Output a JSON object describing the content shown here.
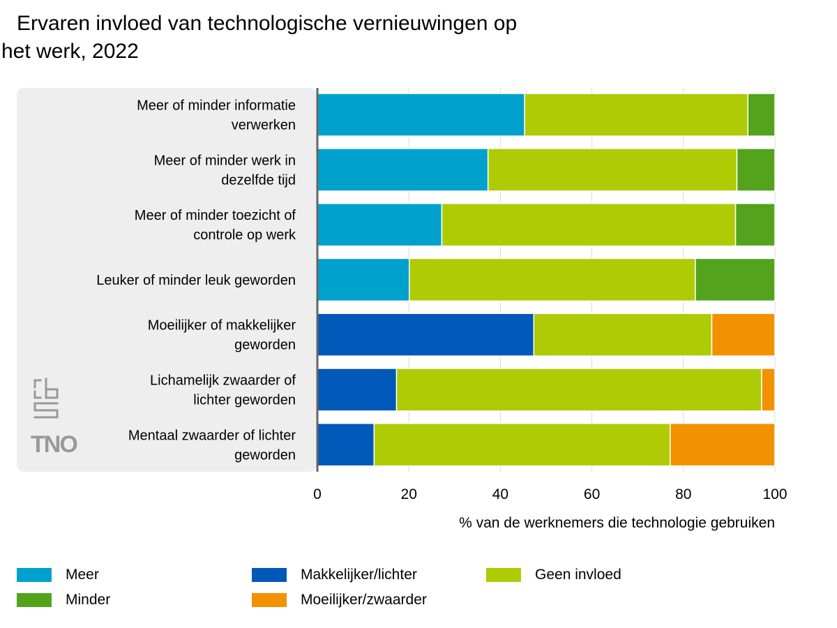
{
  "title_line1": "Ervaren invloed van technologische vernieuwingen op",
  "title_line2": "het werk, 2022",
  "logos": {
    "cbs": "cbs",
    "tno": "TNO"
  },
  "colors": {
    "Meer": "#00a1cd",
    "Minder": "#53a31d",
    "Makkelijker/lichter": "#0058b8",
    "Moeilijker/zwaarder": "#f39200",
    "Geen invloed": "#afcb05"
  },
  "chart_data": {
    "type": "bar",
    "orientation": "horizontal",
    "stacked": true,
    "xlabel": "% van de werknemers die technologie gebruiken",
    "xlim": [
      0,
      100
    ],
    "xticks": [
      "0",
      "20",
      "40",
      "60",
      "80",
      "100"
    ],
    "grid": true,
    "legend_position": "bottom",
    "categories": [
      [
        "Meer of minder informatie",
        "verwerken"
      ],
      [
        "Meer of minder werk in",
        "dezelfde tijd"
      ],
      [
        "Meer of minder toezicht of",
        "controle op werk"
      ],
      [
        "Leuker of minder leuk geworden"
      ],
      [
        "Moeilijker of makkelijker",
        "geworden"
      ],
      [
        "Lichamelijk zwaarder of",
        "lichter geworden"
      ],
      [
        "Mentaal zwaarder of lichter",
        "geworden"
      ]
    ],
    "bars": [
      [
        {
          "series": "Meer",
          "value": 45.3
        },
        {
          "series": "Geen invloed",
          "value": 48.8
        },
        {
          "series": "Minder",
          "value": 5.9
        }
      ],
      [
        {
          "series": "Meer",
          "value": 37.3
        },
        {
          "series": "Geen invloed",
          "value": 54.4
        },
        {
          "series": "Minder",
          "value": 8.3
        }
      ],
      [
        {
          "series": "Meer",
          "value": 27.2
        },
        {
          "series": "Geen invloed",
          "value": 64.2
        },
        {
          "series": "Minder",
          "value": 8.6
        }
      ],
      [
        {
          "series": "Meer",
          "value": 20.1
        },
        {
          "series": "Geen invloed",
          "value": 62.5
        },
        {
          "series": "Minder",
          "value": 17.4
        }
      ],
      [
        {
          "series": "Makkelijker/lichter",
          "value": 47.3
        },
        {
          "series": "Geen invloed",
          "value": 38.9
        },
        {
          "series": "Moeilijker/zwaarder",
          "value": 13.8
        }
      ],
      [
        {
          "series": "Makkelijker/lichter",
          "value": 17.3
        },
        {
          "series": "Geen invloed",
          "value": 79.8
        },
        {
          "series": "Moeilijker/zwaarder",
          "value": 2.9
        }
      ],
      [
        {
          "series": "Makkelijker/lichter",
          "value": 12.4
        },
        {
          "series": "Geen invloed",
          "value": 64.7
        },
        {
          "series": "Moeilijker/zwaarder",
          "value": 22.9
        }
      ]
    ],
    "legend": [
      {
        "name": "Meer"
      },
      {
        "name": "Minder"
      },
      {
        "name": "Makkelijker/lichter"
      },
      {
        "name": "Moeilijker/zwaarder"
      },
      {
        "name": "Geen invloed"
      }
    ]
  }
}
